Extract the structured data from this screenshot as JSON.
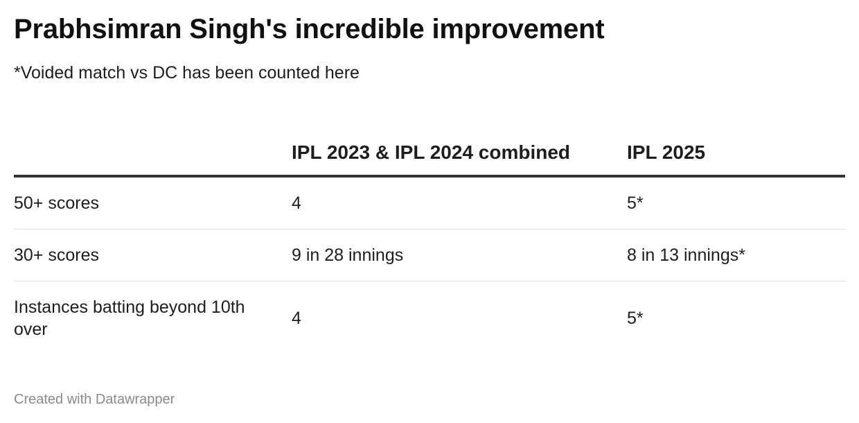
{
  "chart_data": {
    "type": "table",
    "title": "Prabhsimran Singh's incredible improvement",
    "subtitle": "*Voided match vs DC has been counted here",
    "columns": [
      "",
      "IPL 2023 & IPL 2024 combined",
      "IPL 2025"
    ],
    "rows": [
      [
        "50+ scores",
        "4",
        "5*"
      ],
      [
        "30+ scores",
        "9 in 28 innings",
        "8 in 13 innings*"
      ],
      [
        "Instances batting beyond 10th over",
        "4",
        "5*"
      ]
    ],
    "footer": "Created with Datawrapper"
  },
  "colors": {
    "text": "#1d1d1d",
    "header_rule": "#333333",
    "row_divider": "#e0e0e0",
    "footer_text": "#8a8a8a"
  }
}
